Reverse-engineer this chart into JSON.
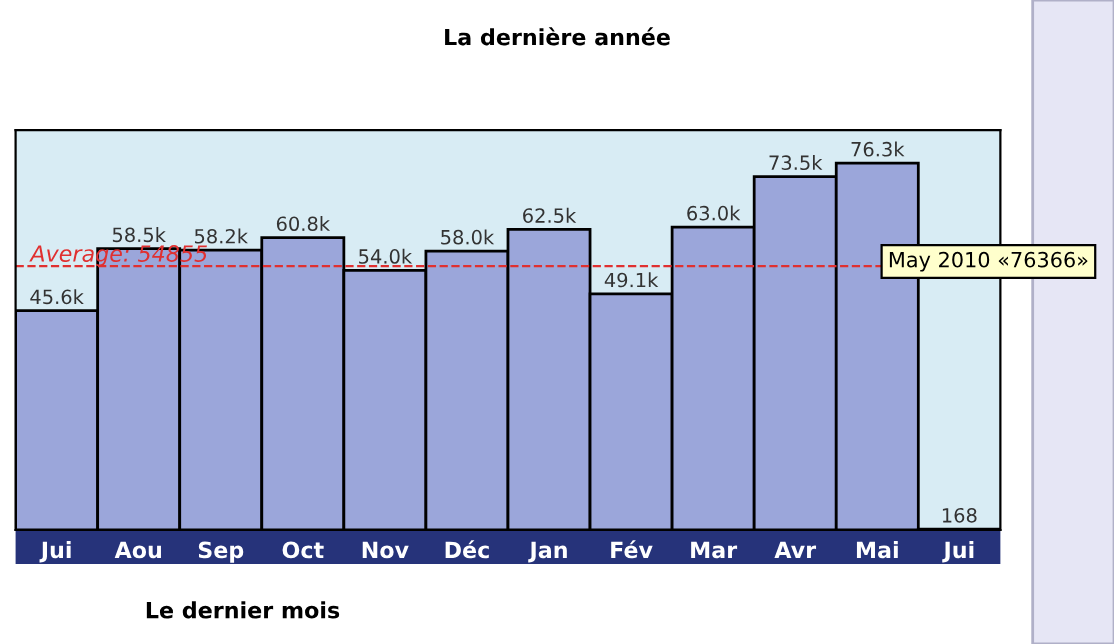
{
  "chart_data": {
    "type": "bar",
    "title": "La dernière année",
    "categories": [
      "Jui",
      "Aou",
      "Sep",
      "Oct",
      "Nov",
      "Déc",
      "Jan",
      "Fév",
      "Mar",
      "Avr",
      "Mai",
      "Jui"
    ],
    "values": [
      45600,
      58500,
      58200,
      60800,
      54000,
      58000,
      62500,
      49100,
      63000,
      73500,
      76300,
      168
    ],
    "value_labels": [
      "45.6k",
      "58.5k",
      "58.2k",
      "60.8k",
      "54.0k",
      "58.0k",
      "62.5k",
      "49.1k",
      "63.0k",
      "73.5k",
      "76.3k",
      "168"
    ],
    "color": "#9ba6da",
    "ref_lines": [
      {
        "axis": "y",
        "value": 54855,
        "label": "Average: 54855",
        "color": "#e03030",
        "line_style": "dashed"
      }
    ],
    "annotations": [
      "May 2010 «76366»",
      "Le dernier mois"
    ],
    "grid": false,
    "legend": false
  }
}
